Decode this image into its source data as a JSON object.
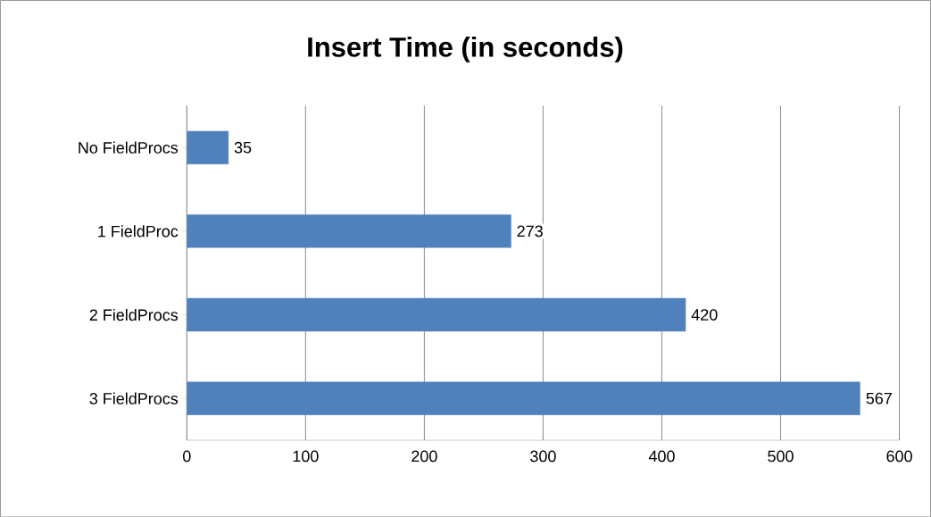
{
  "chart_data": {
    "type": "bar",
    "orientation": "horizontal",
    "title": "Insert Time (in seconds)",
    "categories": [
      "No FieldProcs",
      "1 FieldProc",
      "2 FieldProcs",
      "3 FieldProcs"
    ],
    "values": [
      35,
      273,
      420,
      567
    ],
    "color": "#4f81bd",
    "xlim": [
      0,
      600
    ],
    "xticks": [
      0,
      100,
      200,
      300,
      400,
      500,
      600
    ],
    "grid": "x",
    "data_labels": true
  }
}
